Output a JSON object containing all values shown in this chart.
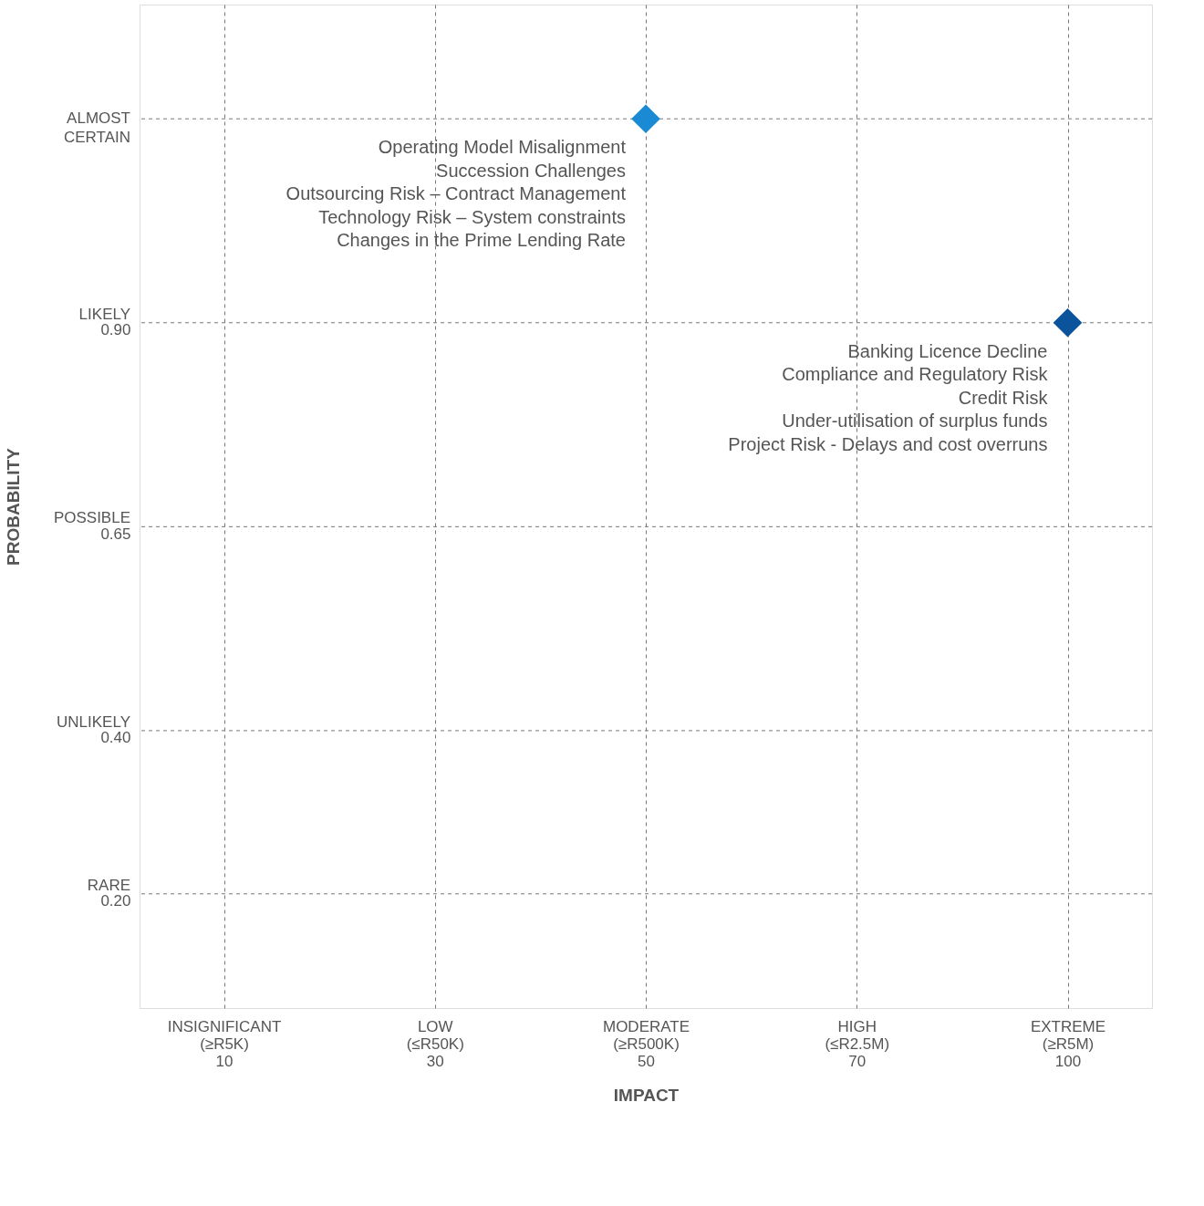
{
  "chart_data": {
    "type": "scatter",
    "xlabel": "IMPACT",
    "ylabel": "PROBABILITY",
    "categories": [
      "INSIGNIFICANT\n(≥R5K)\n10",
      "LOW\n(≤R50K)\n30",
      "MODERATE\n(≥R500K)\n50",
      "HIGH\n(≤R2.5M)\n70",
      "EXTREME\n(≥R5M)\n100"
    ],
    "ylim": [
      0.06,
      1.29
    ],
    "yticks": [
      {
        "value": 0.2,
        "label": "0.20"
      },
      {
        "value": 0.4,
        "label": "0.40"
      },
      0.65,
      {
        "value": 0.9,
        "label": "0.90"
      }
    ],
    "ref_lines": [
      {
        "axis": "y",
        "value": 0.2,
        "label": "RARE",
        "line_style": "dashed",
        "color": "#777777"
      },
      {
        "axis": "y",
        "value": 0.4,
        "label": "UNLIKELY",
        "line_style": "dashed",
        "color": "#777777"
      },
      {
        "axis": "y",
        "value": 0.65,
        "label": "POSSIBLE",
        "line_style": "dashed",
        "color": "#777777"
      },
      {
        "axis": "y",
        "value": 0.9,
        "label": "LIKELY",
        "line_style": "dashed",
        "color": "#777777"
      },
      {
        "axis": "y",
        "value": 1.15,
        "label": "ALMOST\nCERTAIN",
        "line_style": "dashed",
        "color": "#777777"
      }
    ],
    "series": [
      {
        "color": "#1a8ad4",
        "x": [
          "MODERATE\n(≥R500K)\n50"
        ],
        "values": [
          1.15
        ]
      },
      {
        "color": "#0b539b",
        "x": [
          "EXTREME\n(≥R5M)\n100"
        ],
        "values": [
          0.9
        ]
      }
    ],
    "marker": "diamond",
    "grid": "x",
    "annotations": [
      {
        "text": "Operating Model Misalignment\nSuccession Challenges\nOutsourcing Risk – Contract Management\nTechnology Risk – System constraints\nChanges in the Prime Lending Rate",
        "x": "MODERATE\n(≥R500K)\n50",
        "y": 1.15
      },
      {
        "text": "Banking Licence Decline\nCompliance and Regulatory Risk\nCredit Risk\nUnder-utilisation of surplus funds\nProject Risk - Delays and cost overruns",
        "x": "EXTREME\n(≥R5M)\n100",
        "y": 0.9
      }
    ]
  }
}
